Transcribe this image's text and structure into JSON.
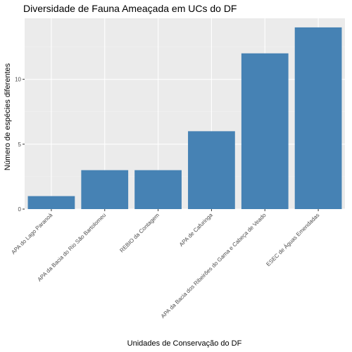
{
  "chart_data": {
    "type": "bar",
    "title": "Diversidade de Fauna Ameaçada em UCs do DF",
    "xlabel": "Unidades de Conservação do DF",
    "ylabel": "Número de espécies diferentes",
    "categories": [
      "APA do Lago Paranoá",
      "APA da Bacia do Rio São Bartolomeu",
      "REBIO da Contagem",
      "APA de Cafuringa",
      "APA da Bacia dos Ribeirões do Gama e Cabeça de Veado",
      "ESEC de Águas Emendadas"
    ],
    "values": [
      1,
      3,
      3,
      6,
      12,
      14
    ],
    "ylim": [
      0,
      14.7
    ],
    "yticks": [
      0,
      5,
      10
    ],
    "ytick_labels": [
      "0",
      "5",
      "10"
    ],
    "grid": true,
    "legend": "none",
    "colors": {
      "bar": "#4682b4",
      "panel": "#ebebeb",
      "grid_major": "#ffffff",
      "grid_minor": "#f2f2f2"
    }
  }
}
